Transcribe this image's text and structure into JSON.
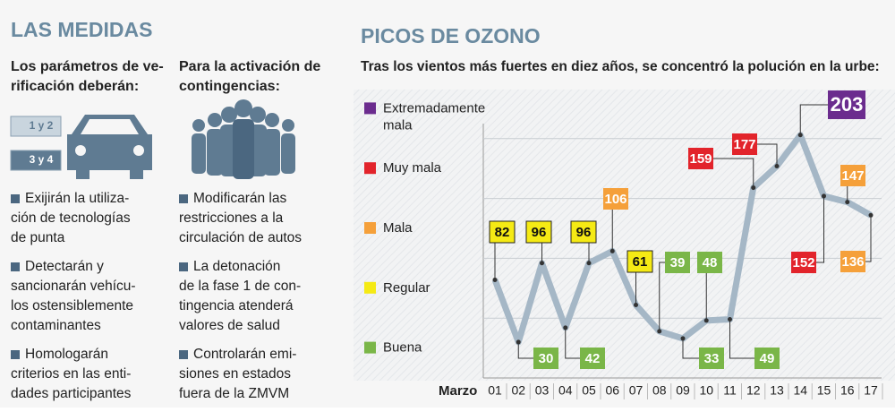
{
  "left": {
    "title": "LAS MEDIDAS",
    "columns": [
      {
        "heading": [
          "Los parámetros de ve-",
          "rificación deberán:"
        ],
        "badges": [
          "1 y 2",
          "3 y 4"
        ],
        "items": [
          [
            "Exijirán la utiliza-",
            "ción de tecnologías",
            "de punta"
          ],
          [
            "Detectarán y",
            "sancionarán vehícu-",
            "los ostensiblemente",
            "contaminantes"
          ],
          [
            "Homologarán",
            "criterios en las enti-",
            "dades participantes"
          ]
        ]
      },
      {
        "heading": [
          "Para la activación de",
          "contingencias:"
        ],
        "items": [
          [
            "Modificarán las",
            "restricciones a la",
            "circulación de autos"
          ],
          [
            "La detonación",
            "de la fase 1 de con-",
            "tingencia atenderá",
            "valores de salud"
          ],
          [
            "Controlarán emi-",
            "siones en estados",
            "fuera de la ZMVM"
          ]
        ]
      }
    ]
  },
  "chart_data": {
    "type": "line",
    "title": "PICOS DE OZONO",
    "subtitle": "Tras los vientos más fuertes en diez años, se concentró la polución en la urbe:",
    "x_label": "Marzo",
    "categories": [
      "01",
      "02",
      "03",
      "04",
      "05",
      "06",
      "07",
      "08",
      "09",
      "10",
      "11",
      "12",
      "13",
      "14",
      "15",
      "16",
      "17"
    ],
    "values": [
      82,
      30,
      96,
      42,
      96,
      106,
      61,
      39,
      33,
      48,
      49,
      159,
      177,
      203,
      152,
      147,
      136
    ],
    "color": "#a5b7c6",
    "ylim": [
      0,
      250
    ],
    "yticks": [
      50,
      100,
      150,
      200
    ],
    "grid": true,
    "levels": [
      {
        "name": [
          "Buena"
        ],
        "color": "#7ab648"
      },
      {
        "name": [
          "Regular"
        ],
        "color": "#f5ea14"
      },
      {
        "name": [
          "Mala"
        ],
        "color": "#f5a03a"
      },
      {
        "name": [
          "Muy mala"
        ],
        "color": "#e2242b"
      },
      {
        "name": [
          "Extremadamente",
          "mala"
        ],
        "color": "#6b2c8e"
      }
    ]
  }
}
